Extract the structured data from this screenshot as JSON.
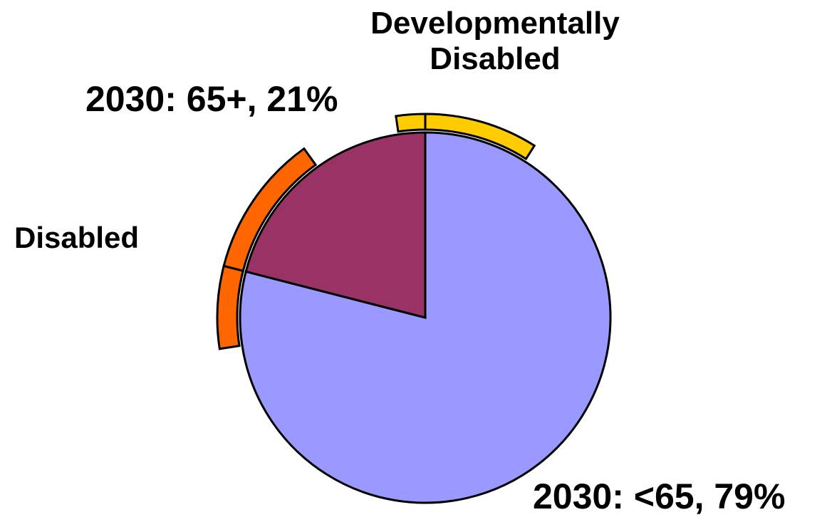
{
  "chart_data": {
    "type": "pie",
    "categories": [
      "<65",
      "65+"
    ],
    "values": [
      79,
      21
    ],
    "value_labels": [
      "2030: <65, 79%",
      "2030: 65+, 21%"
    ],
    "colors": [
      "#9999ff",
      "#993366"
    ],
    "rings": [
      {
        "name": "Disabled",
        "color": "#ff6600",
        "values": [
          6.4,
          11.1
        ]
      },
      {
        "name": "Developmentally Disabled",
        "color": "#ffcc00",
        "values": [
          9,
          2.3
        ]
      }
    ]
  }
}
